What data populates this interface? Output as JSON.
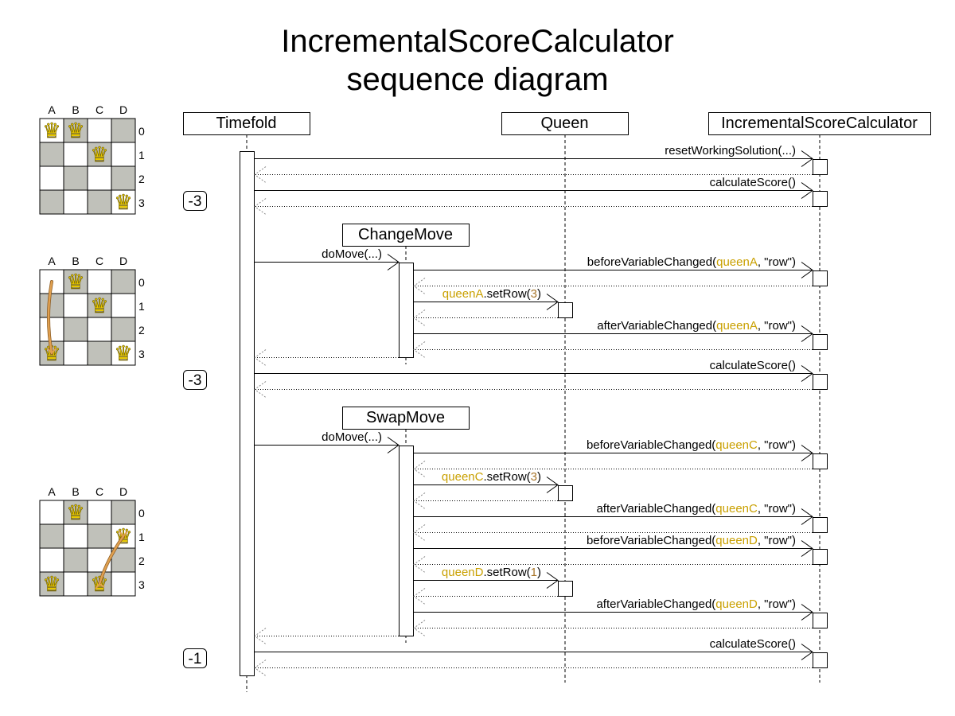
{
  "title": {
    "line1": "IncrementalScoreCalculator",
    "line2": "sequence diagram"
  },
  "colors": {
    "highlight": "#c9a000",
    "number": "#a8752a",
    "lifeline": "#000000",
    "return": "#888888",
    "dark_square": "#c0c1ba",
    "light_square": "#ffffff",
    "queen": "#e8c800",
    "move_arrow": "#e0a050"
  },
  "participants": [
    {
      "id": "timefold",
      "label": "Timefold"
    },
    {
      "id": "queen",
      "label": "Queen"
    },
    {
      "id": "isc",
      "label": "IncrementalScoreCalculator"
    },
    {
      "id": "changemove",
      "label": "ChangeMove"
    },
    {
      "id": "swapmove",
      "label": "SwapMove"
    }
  ],
  "messages": [
    {
      "parts": [
        {
          "t": "resetWorkingSolution(...)"
        }
      ]
    },
    {
      "parts": [
        {
          "t": "calculateScore()"
        }
      ]
    },
    {
      "parts": [
        {
          "t": "doMove(...)"
        }
      ]
    },
    {
      "parts": [
        {
          "t": "beforeVariableChanged("
        },
        {
          "t": "queenA",
          "c": "highlight"
        },
        {
          "t": ", \"row\")"
        }
      ]
    },
    {
      "parts": [
        {
          "t": "queenA",
          "c": "highlight"
        },
        {
          "t": ".setRow("
        },
        {
          "t": "3",
          "c": "number"
        },
        {
          "t": ")"
        }
      ]
    },
    {
      "parts": [
        {
          "t": "afterVariableChanged("
        },
        {
          "t": "queenA",
          "c": "highlight"
        },
        {
          "t": ", \"row\")"
        }
      ]
    },
    {
      "parts": [
        {
          "t": "calculateScore()"
        }
      ]
    },
    {
      "parts": [
        {
          "t": "doMove(...)"
        }
      ]
    },
    {
      "parts": [
        {
          "t": "beforeVariableChanged("
        },
        {
          "t": "queenC",
          "c": "highlight"
        },
        {
          "t": ", \"row\")"
        }
      ]
    },
    {
      "parts": [
        {
          "t": "queenC",
          "c": "highlight"
        },
        {
          "t": ".setRow("
        },
        {
          "t": "3",
          "c": "number"
        },
        {
          "t": ")"
        }
      ]
    },
    {
      "parts": [
        {
          "t": "afterVariableChanged("
        },
        {
          "t": "queenC",
          "c": "highlight"
        },
        {
          "t": ", \"row\")"
        }
      ]
    },
    {
      "parts": [
        {
          "t": "beforeVariableChanged("
        },
        {
          "t": "queenD",
          "c": "highlight"
        },
        {
          "t": ", \"row\")"
        }
      ]
    },
    {
      "parts": [
        {
          "t": "queenD",
          "c": "highlight"
        },
        {
          "t": ".setRow("
        },
        {
          "t": "1",
          "c": "number"
        },
        {
          "t": ")"
        }
      ]
    },
    {
      "parts": [
        {
          "t": "afterVariableChanged("
        },
        {
          "t": "queenD",
          "c": "highlight"
        },
        {
          "t": ", \"row\")"
        }
      ]
    },
    {
      "parts": [
        {
          "t": "calculateScore()"
        }
      ]
    }
  ],
  "scores": [
    "-3",
    "-3",
    "-1"
  ],
  "boards": [
    {
      "columns": [
        "A",
        "B",
        "C",
        "D"
      ],
      "rows": [
        "0",
        "1",
        "2",
        "3"
      ],
      "queens": [
        [
          0,
          0
        ],
        [
          1,
          0
        ],
        [
          2,
          1
        ],
        [
          3,
          3
        ]
      ],
      "move": null
    },
    {
      "columns": [
        "A",
        "B",
        "C",
        "D"
      ],
      "rows": [
        "0",
        "1",
        "2",
        "3"
      ],
      "queens": [
        [
          1,
          0
        ],
        [
          2,
          1
        ],
        [
          0,
          3
        ],
        [
          3,
          3
        ]
      ],
      "move": {
        "from": [
          0,
          0
        ],
        "to": [
          0,
          3
        ],
        "type": "change"
      }
    },
    {
      "columns": [
        "A",
        "B",
        "C",
        "D"
      ],
      "rows": [
        "0",
        "1",
        "2",
        "3"
      ],
      "queens": [
        [
          1,
          0
        ],
        [
          3,
          1
        ],
        [
          0,
          3
        ],
        [
          2,
          3
        ]
      ],
      "move": {
        "from": [
          2,
          3
        ],
        "to": [
          3,
          1
        ],
        "type": "swap"
      }
    }
  ]
}
